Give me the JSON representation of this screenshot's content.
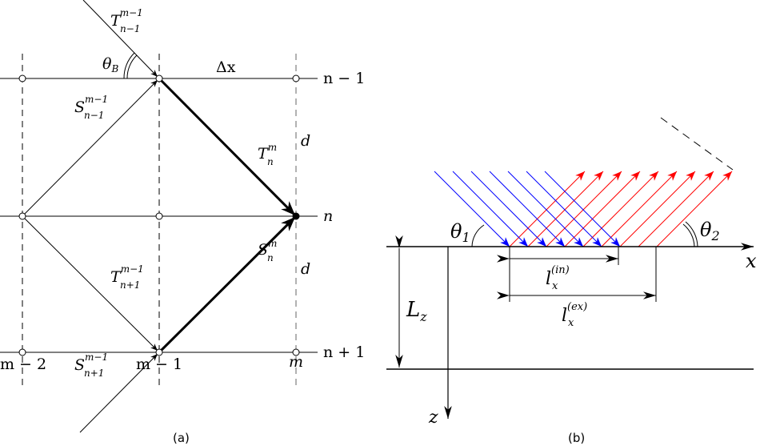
{
  "panel_a": {
    "caption": "(a)",
    "row_labels": [
      "n − 1",
      "n",
      "n + 1"
    ],
    "col_labels": [
      "m − 2",
      "m − 1",
      "m"
    ],
    "spacing_x": "Δx",
    "spacing_z": "d",
    "angle": {
      "sym": "θ",
      "sub": "B"
    },
    "arrows": {
      "T_in": {
        "sym": "T",
        "sup": "m−1",
        "sub": "n−1"
      },
      "S_up": {
        "sym": "S",
        "sup": "m−1",
        "sub": "n−1"
      },
      "T_m": {
        "sym": "T",
        "sup": "m",
        "sub": "n"
      },
      "S_m": {
        "sym": "S",
        "sup": "m",
        "sub": "n"
      },
      "T_low": {
        "sym": "T",
        "sup": "m−1",
        "sub": "n+1"
      },
      "S_in": {
        "sym": "S",
        "sup": "m−1",
        "sub": "n+1"
      }
    }
  },
  "panel_b": {
    "caption": "(b)",
    "theta1": {
      "sym": "θ",
      "sub": "1"
    },
    "theta2": {
      "sym": "θ",
      "sub": "2"
    },
    "x_axis": "x",
    "z_axis": "z",
    "thickness": {
      "sym": "L",
      "sub": "z"
    },
    "l_in": {
      "sym": "l",
      "sub": "x",
      "sup": "(in)"
    },
    "l_ex": {
      "sym": "l",
      "sub": "x",
      "sup": "(ex)"
    },
    "incident_color": "#0000ff",
    "reflected_color": "#ff0000",
    "incident_rays": 7,
    "reflected_rays": 9
  }
}
